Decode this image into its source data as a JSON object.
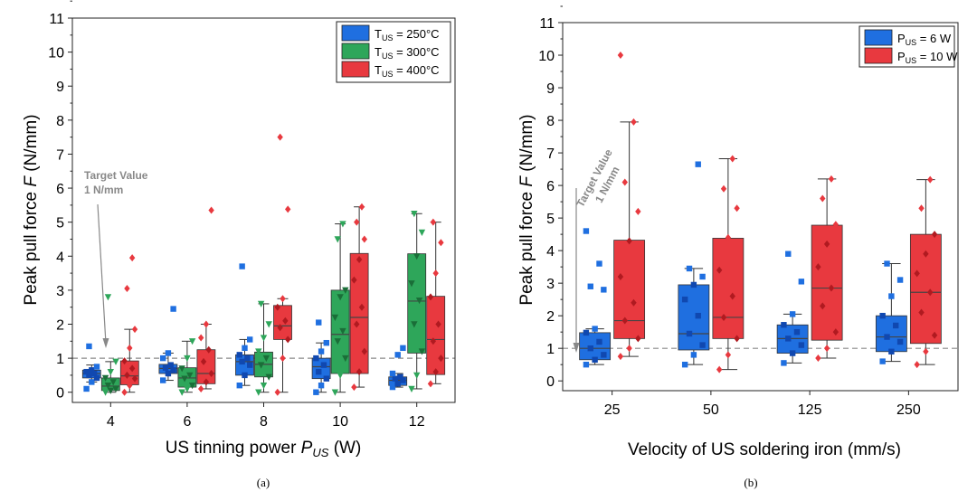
{
  "colors": {
    "blue": "#1f6fe0",
    "green": "#2ea65a",
    "red": "#e8393f",
    "dark_blue": "#1048b0",
    "dark_green": "#1a6e38",
    "dark_red": "#b01a20",
    "target_line": "#888888"
  },
  "chart_data": [
    {
      "type": "box",
      "caption": "(a)",
      "xlabel_prefix": "US tinning power ",
      "xlabel_sym": "P",
      "xlabel_sub": "US",
      "xlabel_suffix": " (W)",
      "ylabel_prefix": "Peak pull force ",
      "ylabel_sym": "F",
      "ylabel_suffix": " (N/mm)",
      "ylim": [
        -0.3,
        11
      ],
      "yticks": [
        "0",
        "1",
        "2",
        "3",
        "4",
        "5",
        "6",
        "7",
        "8",
        "9",
        "10",
        "11"
      ],
      "categories": [
        "4",
        "6",
        "8",
        "10",
        "12"
      ],
      "target": {
        "value": 1,
        "label1": "Target Value",
        "label2": "1 N/mm"
      },
      "legend": [
        {
          "prefix": "T",
          "sub": "US",
          "suffix": " = 250°C",
          "color_key": "blue"
        },
        {
          "prefix": "T",
          "sub": "US",
          "suffix": " = 300°C",
          "color_key": "green"
        },
        {
          "prefix": "T",
          "sub": "US",
          "suffix": " = 400°C",
          "color_key": "red"
        }
      ],
      "series": [
        {
          "name": "T_US = 250°C",
          "color_key": "blue",
          "marker": "square",
          "boxes": [
            {
              "q1": 0.42,
              "median": 0.55,
              "q3": 0.65,
              "wlo": 0.3,
              "whi": 0.8,
              "points": [
                0.1,
                0.3,
                0.42,
                0.5,
                0.55,
                0.6,
                0.65,
                0.75,
                1.35
              ]
            },
            {
              "q1": 0.55,
              "median": 0.7,
              "q3": 0.82,
              "wlo": 0.35,
              "whi": 1.15,
              "points": [
                0.35,
                0.55,
                0.65,
                0.72,
                0.8,
                1.0,
                1.15,
                2.45
              ]
            },
            {
              "q1": 0.5,
              "median": 0.9,
              "q3": 1.1,
              "wlo": 0.2,
              "whi": 1.55,
              "points": [
                0.2,
                0.5,
                0.8,
                0.9,
                1.0,
                1.1,
                1.3,
                1.55,
                3.7
              ]
            },
            {
              "q1": 0.4,
              "median": 0.75,
              "q3": 1.0,
              "wlo": 0.0,
              "whi": 1.45,
              "points": [
                0.0,
                0.2,
                0.4,
                0.6,
                0.8,
                1.0,
                1.2,
                1.45,
                2.05
              ]
            },
            {
              "q1": 0.2,
              "median": 0.35,
              "q3": 0.45,
              "wlo": 0.15,
              "whi": 0.55,
              "points": [
                0.15,
                0.25,
                0.35,
                0.4,
                0.45,
                0.55,
                1.1,
                1.3
              ]
            }
          ]
        },
        {
          "name": "T_US = 300°C",
          "color_key": "green",
          "marker": "triangle",
          "boxes": [
            {
              "q1": 0.05,
              "median": 0.18,
              "q3": 0.42,
              "wlo": 0.0,
              "whi": 0.9,
              "points": [
                0.0,
                0.05,
                0.1,
                0.2,
                0.3,
                0.42,
                0.6,
                0.9,
                2.8
              ]
            },
            {
              "q1": 0.15,
              "median": 0.42,
              "q3": 0.72,
              "wlo": 0.0,
              "whi": 1.5,
              "points": [
                0.0,
                0.1,
                0.2,
                0.4,
                0.5,
                0.7,
                1.0,
                1.5
              ]
            },
            {
              "q1": 0.45,
              "median": 0.82,
              "q3": 1.18,
              "wlo": 0.0,
              "whi": 2.6,
              "points": [
                0.0,
                0.2,
                0.45,
                0.8,
                1.0,
                1.2,
                1.6,
                2.0,
                2.6
              ]
            },
            {
              "q1": 0.55,
              "median": 1.7,
              "q3": 3.0,
              "wlo": 0.0,
              "whi": 4.95,
              "points": [
                0.0,
                0.5,
                1.0,
                1.5,
                1.8,
                2.2,
                2.8,
                3.0,
                4.5,
                4.95
              ]
            },
            {
              "q1": 1.15,
              "median": 2.68,
              "q3": 4.07,
              "wlo": 0.1,
              "whi": 5.25,
              "points": [
                0.1,
                0.5,
                1.2,
                2.0,
                2.7,
                3.2,
                4.0,
                4.7,
                5.25
              ]
            }
          ]
        },
        {
          "name": "T_US = 400°C",
          "color_key": "red",
          "marker": "diamond",
          "boxes": [
            {
              "q1": 0.22,
              "median": 0.48,
              "q3": 0.92,
              "wlo": 0.0,
              "whi": 1.85,
              "points": [
                0.0,
                0.2,
                0.4,
                0.5,
                0.7,
                0.92,
                1.3,
                1.85,
                3.05,
                3.95
              ]
            },
            {
              "q1": 0.25,
              "median": 0.55,
              "q3": 1.25,
              "wlo": 0.1,
              "whi": 2.0,
              "points": [
                0.1,
                0.3,
                0.55,
                0.9,
                1.25,
                1.6,
                2.0,
                5.35
              ]
            },
            {
              "q1": 1.55,
              "median": 1.95,
              "q3": 2.55,
              "wlo": 0.0,
              "whi": 2.75,
              "points": [
                0.0,
                1.0,
                1.55,
                1.9,
                2.1,
                2.5,
                2.75,
                5.38,
                7.5
              ]
            },
            {
              "q1": 0.55,
              "median": 2.2,
              "q3": 4.08,
              "wlo": 0.15,
              "whi": 5.45,
              "points": [
                0.15,
                0.6,
                1.2,
                2.0,
                2.5,
                3.3,
                3.9,
                4.5,
                5.0,
                5.45
              ]
            },
            {
              "q1": 0.52,
              "median": 1.55,
              "q3": 2.82,
              "wlo": 0.25,
              "whi": 5.0,
              "points": [
                0.25,
                0.6,
                1.0,
                1.5,
                2.0,
                2.8,
                3.5,
                4.4,
                5.0
              ]
            }
          ]
        }
      ]
    },
    {
      "type": "box",
      "caption": "(b)",
      "xlabel_prefix": "Velocity of US soldering iron (mm/s)",
      "xlabel_sym": "",
      "xlabel_sub": "",
      "xlabel_suffix": "",
      "ylabel_prefix": "Peak pull force ",
      "ylabel_sym": "F",
      "ylabel_suffix": " (N/mm)",
      "ylim": [
        -0.3,
        11
      ],
      "yticks": [
        "0",
        "1",
        "2",
        "3",
        "4",
        "5",
        "6",
        "7",
        "8",
        "9",
        "10",
        "11"
      ],
      "categories": [
        "25",
        "50",
        "125",
        "250"
      ],
      "target": {
        "value": 1,
        "label1": "Target Value",
        "label2": "1 N/mm"
      },
      "legend": [
        {
          "prefix": "P",
          "sub": "US",
          "suffix": " = 6 W",
          "color_key": "blue"
        },
        {
          "prefix": "P",
          "sub": "US",
          "suffix": " = 10 W",
          "color_key": "red"
        }
      ],
      "series": [
        {
          "name": "P_US = 6 W",
          "color_key": "blue",
          "marker": "square",
          "boxes": [
            {
              "q1": 0.65,
              "median": 1.0,
              "q3": 1.48,
              "wlo": 0.5,
              "whi": 1.6,
              "points": [
                0.5,
                0.65,
                0.8,
                1.0,
                1.2,
                1.48,
                1.6,
                2.8,
                2.9,
                3.6,
                4.6
              ]
            },
            {
              "q1": 0.95,
              "median": 1.45,
              "q3": 2.95,
              "wlo": 0.5,
              "whi": 3.45,
              "points": [
                0.5,
                0.8,
                1.1,
                1.45,
                2.0,
                2.5,
                2.95,
                3.2,
                3.45,
                6.65
              ]
            },
            {
              "q1": 0.85,
              "median": 1.3,
              "q3": 1.72,
              "wlo": 0.55,
              "whi": 2.05,
              "points": [
                0.55,
                0.85,
                1.1,
                1.3,
                1.5,
                1.72,
                2.05,
                3.05,
                3.9
              ]
            },
            {
              "q1": 0.9,
              "median": 1.35,
              "q3": 2.0,
              "wlo": 0.6,
              "whi": 3.6,
              "points": [
                0.6,
                0.9,
                1.2,
                1.35,
                1.7,
                2.0,
                2.6,
                3.1,
                3.6
              ]
            }
          ]
        },
        {
          "name": "P_US = 10 W",
          "color_key": "red",
          "marker": "diamond",
          "boxes": [
            {
              "q1": 1.3,
              "median": 1.85,
              "q3": 4.32,
              "wlo": 0.75,
              "whi": 7.95,
              "points": [
                0.75,
                1.0,
                1.3,
                1.85,
                2.4,
                3.2,
                4.3,
                5.2,
                6.1,
                7.95,
                10.0
              ]
            },
            {
              "q1": 1.3,
              "median": 1.95,
              "q3": 4.38,
              "wlo": 0.35,
              "whi": 6.82,
              "points": [
                0.35,
                0.8,
                1.3,
                1.95,
                2.6,
                3.4,
                4.4,
                5.3,
                5.9,
                6.82
              ]
            },
            {
              "q1": 1.25,
              "median": 2.85,
              "q3": 4.78,
              "wlo": 0.7,
              "whi": 6.2,
              "points": [
                0.7,
                1.0,
                1.5,
                2.3,
                2.85,
                3.5,
                4.2,
                4.8,
                5.6,
                6.2
              ]
            },
            {
              "q1": 1.15,
              "median": 2.72,
              "q3": 4.5,
              "wlo": 0.5,
              "whi": 6.18,
              "points": [
                0.5,
                0.9,
                1.4,
                2.1,
                2.72,
                3.3,
                3.9,
                4.5,
                5.3,
                6.18
              ]
            }
          ]
        }
      ]
    }
  ]
}
